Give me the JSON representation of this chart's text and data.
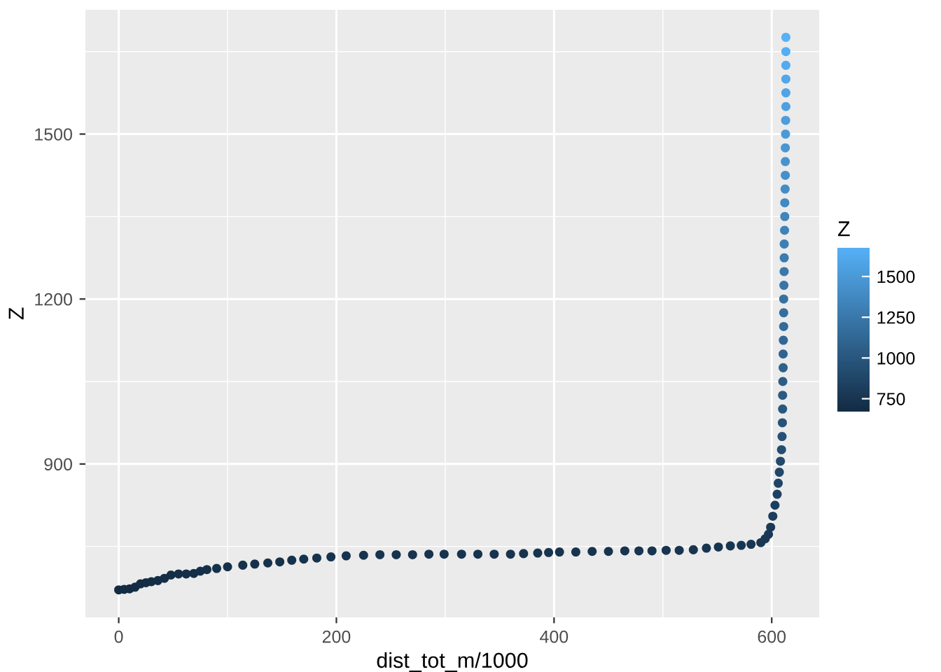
{
  "chart_data": {
    "type": "scatter",
    "xlabel": "dist_tot_m/1000",
    "ylabel": "Z",
    "clabel": "Z",
    "x": [
      0,
      5,
      10,
      15,
      20,
      25,
      30,
      36,
      42,
      48,
      55,
      62,
      69,
      75,
      81,
      90,
      100,
      114,
      125,
      137,
      148,
      159,
      170,
      182,
      195,
      209,
      225,
      240,
      255,
      270,
      285,
      299,
      315,
      330,
      345,
      360,
      372,
      385,
      395,
      405,
      420,
      435,
      450,
      465,
      478,
      490,
      503,
      515,
      528,
      540,
      551,
      562,
      572,
      581,
      590,
      594,
      597,
      599,
      601,
      603,
      605,
      606,
      607,
      608,
      609,
      609.5,
      609.8,
      610,
      610,
      610.2,
      610.5,
      610.5,
      610.7,
      611,
      611,
      611,
      611.2,
      611.4,
      611.5,
      611.5,
      611.8,
      612,
      612,
      612.3,
      612.5,
      612.5,
      612.5,
      612.7,
      612.8,
      613,
      613,
      613,
      613,
      613,
      613
    ],
    "values": [
      671,
      672,
      673,
      676,
      682,
      684,
      686,
      688,
      692,
      698,
      700,
      700,
      701,
      705,
      708,
      710,
      713,
      716,
      718,
      720,
      722,
      725,
      727,
      729,
      731,
      733,
      734,
      735,
      735,
      735,
      736,
      736,
      736,
      736,
      736,
      736,
      737,
      738,
      739,
      740,
      740,
      741,
      741,
      742,
      742,
      742,
      743,
      743,
      744,
      747,
      749,
      751,
      752,
      754,
      757,
      764,
      772,
      785,
      805,
      825,
      845,
      865,
      885,
      905,
      926,
      950,
      975,
      1000,
      1025,
      1050,
      1075,
      1100,
      1125,
      1150,
      1175,
      1200,
      1225,
      1250,
      1275,
      1300,
      1325,
      1350,
      1375,
      1400,
      1425,
      1450,
      1475,
      1500,
      1525,
      1550,
      1575,
      1600,
      1625,
      1650,
      1676
    ],
    "xlim": [
      -30.6,
      643.6
    ],
    "ylim": [
      621,
      1726
    ],
    "xticks": [
      0,
      200,
      400,
      600
    ],
    "yticks": [
      900,
      1200,
      1500
    ],
    "clim": [
      671,
      1676
    ],
    "cticks": [
      750,
      1000,
      1250,
      1500
    ],
    "grid": true,
    "marker": "circle"
  }
}
